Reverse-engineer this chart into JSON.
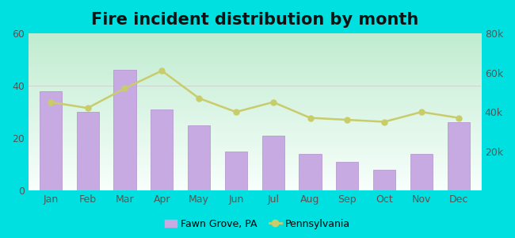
{
  "title": "Fire incident distribution by month",
  "months": [
    "Jan",
    "Feb",
    "Mar",
    "Apr",
    "May",
    "Jun",
    "Jul",
    "Aug",
    "Sep",
    "Oct",
    "Nov",
    "Dec"
  ],
  "bar_values": [
    38,
    30,
    46,
    31,
    25,
    15,
    21,
    14,
    11,
    8,
    14,
    26
  ],
  "line_values": [
    45000,
    42000,
    52000,
    61000,
    47000,
    40000,
    45000,
    37000,
    36000,
    35000,
    40000,
    37000
  ],
  "bar_color": "#c8aae2",
  "line_color": "#c8cc6a",
  "bar_edge_color": "#b090cc",
  "plot_bg_top": "#f8fffc",
  "plot_bg_bottom": "#c0ecd0",
  "left_ylim": [
    0,
    60
  ],
  "right_ylim": [
    0,
    80000
  ],
  "left_yticks": [
    0,
    20,
    40,
    60
  ],
  "right_yticks": [
    20000,
    40000,
    60000,
    80000
  ],
  "right_yticklabels": [
    "20k",
    "40k",
    "60k",
    "80k"
  ],
  "legend_label_bar": "Fawn Grove, PA",
  "legend_label_line": "Pennsylvania",
  "title_fontsize": 15,
  "tick_fontsize": 9,
  "legend_fontsize": 9,
  "outer_bg": "#00e0e0"
}
